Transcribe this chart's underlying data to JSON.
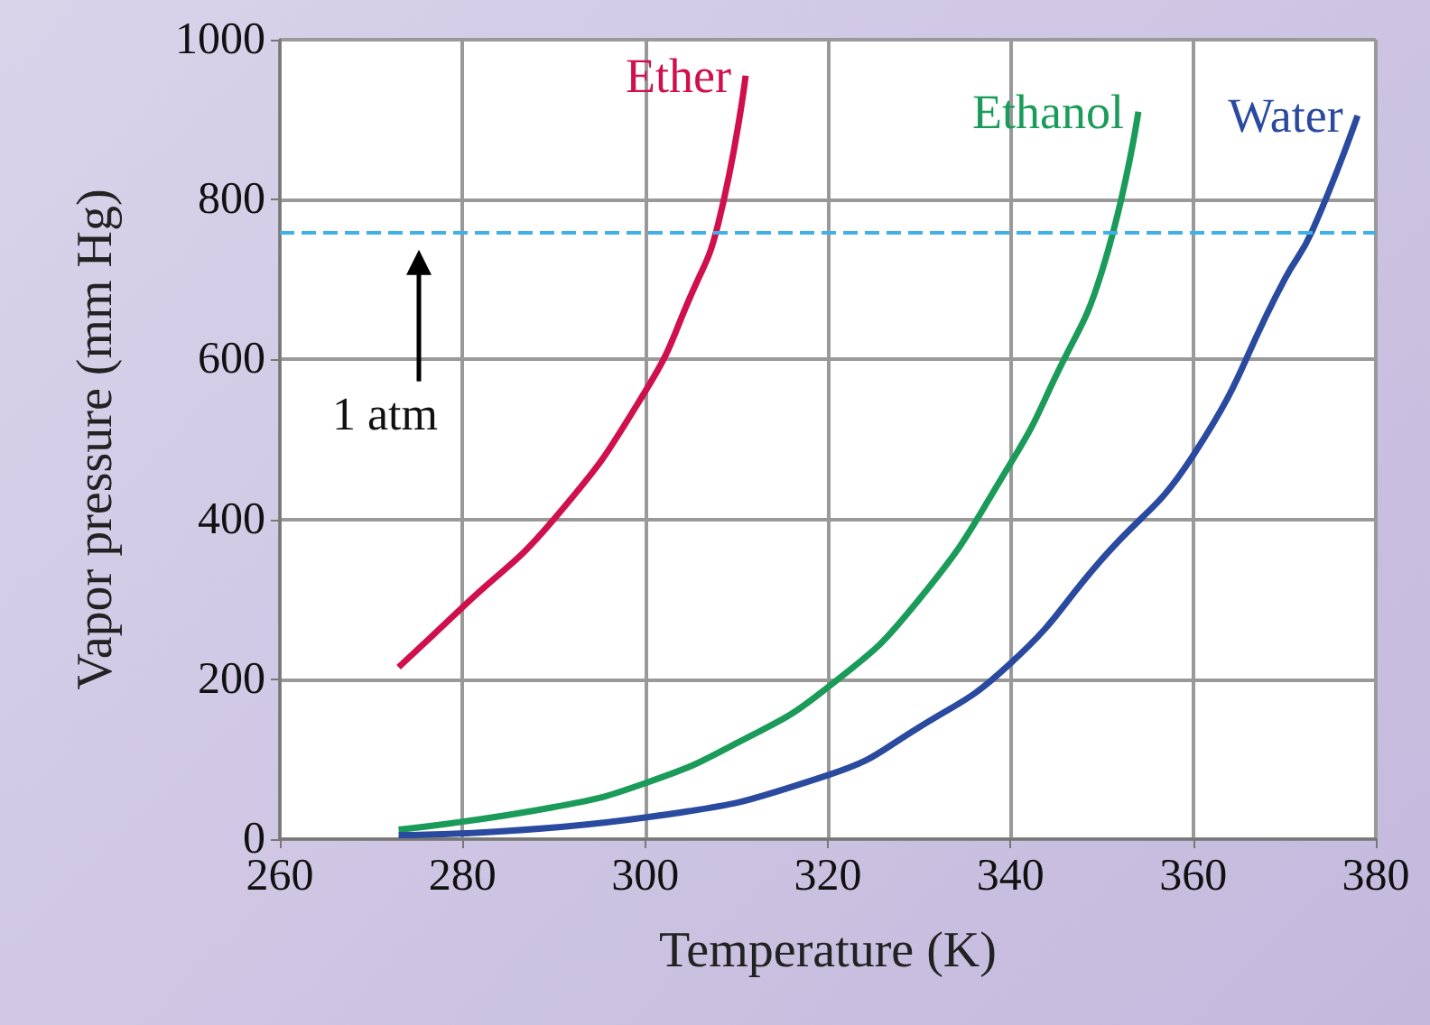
{
  "chart_data": {
    "type": "line",
    "xlabel": "Temperature (K)",
    "ylabel": "Vapor pressure (mm Hg)",
    "xlim": [
      260,
      380
    ],
    "xticks": [
      260,
      280,
      300,
      320,
      340,
      360,
      380
    ],
    "ylim": [
      0,
      1000
    ],
    "yticks": [
      0,
      200,
      400,
      600,
      800,
      1000
    ],
    "grid": true,
    "legend": false,
    "marker": "none",
    "line_style": "solid",
    "series": [
      {
        "name": "Ether",
        "color": "#d0104c",
        "x": [
          273,
          280,
          290,
          300,
          305,
          308,
          311
        ],
        "values": [
          215,
          290,
          400,
          560,
          680,
          770,
          955
        ]
      },
      {
        "name": "Ethanol",
        "color": "#1a9b5a",
        "x": [
          273,
          290,
          300,
          310,
          320,
          330,
          340,
          345,
          350,
          354
        ],
        "values": [
          12,
          40,
          70,
          120,
          190,
          300,
          470,
          580,
          710,
          910
        ]
      },
      {
        "name": "Water",
        "color": "#2a4aa0",
        "x": [
          273,
          300,
          320,
          330,
          340,
          350,
          360,
          370,
          373,
          378
        ],
        "values": [
          5,
          27,
          80,
          140,
          220,
          350,
          480,
          700,
          760,
          905
        ]
      }
    ],
    "ref_lines": [
      {
        "axis": "y",
        "value": 760,
        "color": "#3fb0e8",
        "line_style": "dashed"
      }
    ],
    "annotations": [
      "1 atm"
    ]
  }
}
